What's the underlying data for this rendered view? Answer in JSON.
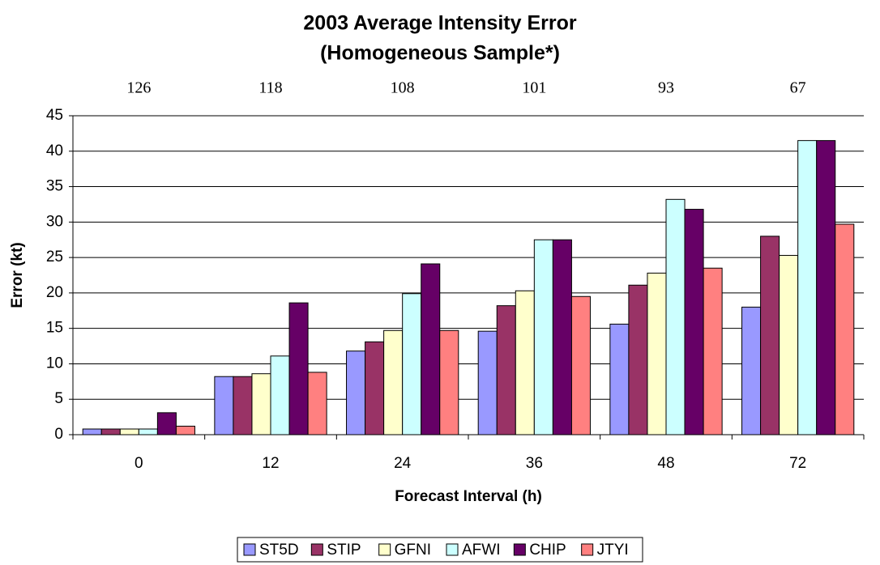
{
  "chart_data": {
    "type": "bar",
    "title": "2003 Average Intensity Error",
    "subtitle": "(Homogeneous Sample*)",
    "sample_counts": [
      126,
      118,
      108,
      101,
      93,
      67
    ],
    "x_label": "Forecast Interval (h)",
    "y_label": "Error (kt)",
    "categories": [
      "0",
      "12",
      "24",
      "36",
      "48",
      "72"
    ],
    "series": [
      {
        "name": "ST5D",
        "color": "#9999ff",
        "values": [
          0.8,
          8.2,
          11.8,
          14.6,
          15.6,
          18.0
        ]
      },
      {
        "name": "STIP",
        "color": "#993366",
        "values": [
          0.8,
          8.2,
          13.1,
          18.2,
          21.1,
          28.0
        ]
      },
      {
        "name": "GFNI",
        "color": "#ffffcc",
        "values": [
          0.8,
          8.6,
          14.7,
          20.3,
          22.8,
          25.3
        ]
      },
      {
        "name": "AFWI",
        "color": "#ccffff",
        "values": [
          0.8,
          11.1,
          19.9,
          27.5,
          33.2,
          41.5
        ]
      },
      {
        "name": "CHIP",
        "color": "#660066",
        "values": [
          3.1,
          18.6,
          24.1,
          27.5,
          31.8,
          41.5
        ]
      },
      {
        "name": "JTYI",
        "color": "#ff8080",
        "values": [
          1.2,
          8.8,
          14.7,
          19.5,
          23.5,
          29.7
        ]
      }
    ],
    "ylim": [
      0,
      45
    ],
    "yticks": [
      0,
      5,
      10,
      15,
      20,
      25,
      30,
      35,
      40,
      45
    ],
    "grid": true,
    "legend": "bottom"
  }
}
